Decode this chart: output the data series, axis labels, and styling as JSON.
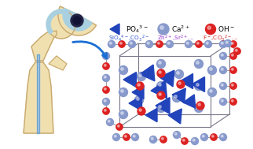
{
  "bg_color": "#ffffff",
  "bone_color": "#f0e0b0",
  "bone_outline": "#c8a870",
  "cartilage_color": "#a8d0e0",
  "implant_color": "#d0eaf8",
  "implant_outline": "#80b8d8",
  "arrow_color": "#1a6fd4",
  "box_color": "#777788",
  "ca_color": "#8899cc",
  "oh_color": "#dd2222",
  "po4_color": "#2244bb",
  "bond_color": "#888888",
  "legend": {
    "po4_label": "PO$_4$$^{3-}$",
    "ca_label": "Ca$^{2+}$",
    "oh_label": "OH$^-$",
    "sub1_text": "SiO$_4$$^{4-}$,CO$_3$$^{2-}$",
    "sub1_color": "#3355cc",
    "sub2_text": "Zn$^{2+}$,Sr$^{2+}$...",
    "sub2_color": "#9933cc",
    "sub3_text": "F$^-$,CO$_3$$^{2-}$...",
    "sub3_color": "#cc2222"
  }
}
